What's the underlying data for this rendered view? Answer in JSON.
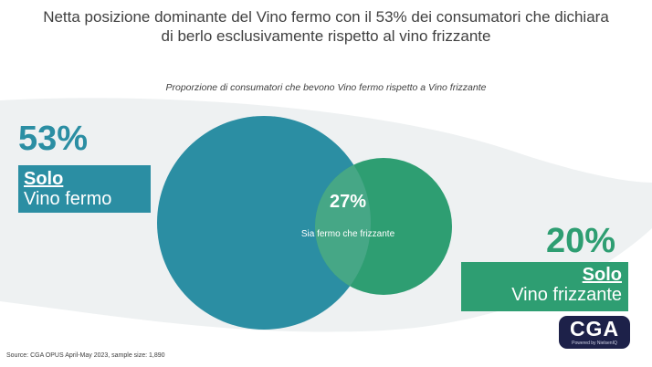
{
  "title": "Netta posizione dominante del Vino fermo con il 53% dei consumatori che dichiara di berlo esclusivamente rispetto al vino frizzante",
  "chart_data": {
    "type": "venn",
    "title": "Proporzione di consumatori che bevono Vino fermo rispetto a Vino frizzante",
    "sets": [
      {
        "qualifier": "Solo",
        "name": "Vino fermo",
        "value": 53,
        "label": "53%",
        "color": "#2b8ea3"
      },
      {
        "qualifier": "Solo",
        "name": "Vino frizzante",
        "value": 20,
        "label": "20%",
        "color": "#2e9e72"
      }
    ],
    "overlap": {
      "value": 27,
      "label": "27%",
      "description": "Sia fermo che frizzante",
      "color": "#4aa88a"
    }
  },
  "source": "Source: CGA OPUS April-May 2023, sample size: 1,890",
  "logo": {
    "text": "CGA",
    "tagline": "Powered by NielsenIQ"
  },
  "colors": {
    "background_band": "#eef1f2",
    "title_text": "#404040"
  }
}
